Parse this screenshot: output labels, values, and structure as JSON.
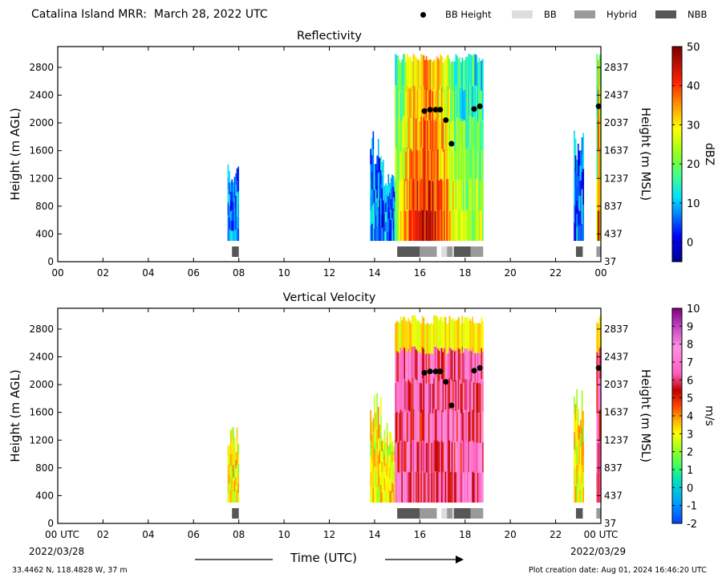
{
  "title": "Catalina Island MRR:  March 28, 2022 UTC",
  "legend": [
    {
      "label": "BB Height",
      "kind": "dot",
      "color": "#000000"
    },
    {
      "label": "BB",
      "kind": "box",
      "color": "#dddddd"
    },
    {
      "label": "Hybrid",
      "kind": "box",
      "color": "#9a9a9a"
    },
    {
      "label": "NBB",
      "kind": "box",
      "color": "#575757"
    }
  ],
  "xlabel": "Time (UTC)",
  "start_date": "2022/03/28",
  "end_date": "2022/03/29",
  "location": "33.4462 N, 118.4828 W, 37 m",
  "creation_date": "Plot creation date: Aug 01, 2024 16:46:20 UTC",
  "chart_data": [
    {
      "type": "heatmap",
      "title": "Reflectivity",
      "ylabel": "Height (m AGL)",
      "ylabel_right": "Height (m MSL)",
      "xlim": [
        0,
        24
      ],
      "ylim": [
        0,
        3100
      ],
      "x_ticks": [
        "00",
        "02",
        "04",
        "06",
        "08",
        "10",
        "12",
        "14",
        "16",
        "18",
        "20",
        "22",
        "00"
      ],
      "y_ticks_left": [
        0,
        400,
        800,
        1200,
        1600,
        2000,
        2400,
        2800
      ],
      "y_ticks_right": [
        37,
        437,
        837,
        1237,
        1637,
        2037,
        2437,
        2837
      ],
      "colorbar": {
        "label": "dBZ",
        "min": -5,
        "max": 50,
        "ticks": [
          0,
          10,
          20,
          30,
          40,
          50
        ]
      },
      "echo_periods": [
        {
          "start": 7.5,
          "end": 8.0,
          "top": 1400,
          "bottom": 300
        },
        {
          "start": 13.8,
          "end": 14.3,
          "top": 1900,
          "bottom": 300
        },
        {
          "start": 14.3,
          "end": 14.9,
          "top": 1500,
          "bottom": 300
        },
        {
          "start": 14.9,
          "end": 18.8,
          "top": 3000,
          "bottom": 300
        },
        {
          "start": 22.8,
          "end": 23.2,
          "top": 2000,
          "bottom": 300
        },
        {
          "start": 23.8,
          "end": 24.0,
          "top": 3000,
          "bottom": 300
        }
      ],
      "bb_height": [
        {
          "x": 16.2,
          "y": 2170
        },
        {
          "x": 16.45,
          "y": 2190
        },
        {
          "x": 16.7,
          "y": 2190
        },
        {
          "x": 16.9,
          "y": 2190
        },
        {
          "x": 17.15,
          "y": 2040
        },
        {
          "x": 17.4,
          "y": 1700
        },
        {
          "x": 18.4,
          "y": 2200
        },
        {
          "x": 18.65,
          "y": 2240
        },
        {
          "x": 23.9,
          "y": 2240
        }
      ],
      "bb_type": [
        {
          "start": 7.7,
          "end": 8.0,
          "class": "NBB"
        },
        {
          "start": 15.0,
          "end": 16.0,
          "class": "NBB"
        },
        {
          "start": 16.0,
          "end": 16.75,
          "class": "Hybrid"
        },
        {
          "start": 16.95,
          "end": 17.2,
          "class": "BB"
        },
        {
          "start": 17.2,
          "end": 17.45,
          "class": "Hybrid"
        },
        {
          "start": 17.5,
          "end": 18.25,
          "class": "NBB"
        },
        {
          "start": 18.25,
          "end": 18.8,
          "class": "Hybrid"
        },
        {
          "start": 22.9,
          "end": 23.2,
          "class": "NBB"
        },
        {
          "start": 23.8,
          "end": 24.0,
          "class": "Hybrid"
        }
      ]
    },
    {
      "type": "heatmap",
      "title": "Vertical Velocity",
      "ylabel": "Height (m AGL)",
      "ylabel_right": "Height (m MSL)",
      "xlim": [
        0,
        24
      ],
      "ylim": [
        0,
        3100
      ],
      "x_ticks": [
        "00 UTC",
        "02",
        "04",
        "06",
        "08",
        "10",
        "12",
        "14",
        "16",
        "18",
        "20",
        "22",
        "00 UTC"
      ],
      "y_ticks_left": [
        0,
        400,
        800,
        1200,
        1600,
        2000,
        2400,
        2800
      ],
      "y_ticks_right": [
        37,
        437,
        837,
        1237,
        1637,
        2037,
        2437,
        2837
      ],
      "colorbar": {
        "label": "m/s",
        "min": -2,
        "max": 10,
        "ticks": [
          -2,
          -1,
          0,
          1,
          2,
          3,
          4,
          5,
          6,
          7,
          8,
          9,
          10
        ]
      },
      "echo_periods": [
        {
          "start": 7.5,
          "end": 8.0,
          "top": 1400,
          "bottom": 300
        },
        {
          "start": 13.8,
          "end": 14.3,
          "top": 1900,
          "bottom": 300
        },
        {
          "start": 14.3,
          "end": 14.9,
          "top": 1500,
          "bottom": 300
        },
        {
          "start": 14.9,
          "end": 18.8,
          "top": 3000,
          "bottom": 300
        },
        {
          "start": 22.8,
          "end": 23.2,
          "top": 2000,
          "bottom": 300
        },
        {
          "start": 23.8,
          "end": 24.0,
          "top": 3000,
          "bottom": 300
        }
      ],
      "bb_height": [
        {
          "x": 16.2,
          "y": 2170
        },
        {
          "x": 16.45,
          "y": 2190
        },
        {
          "x": 16.7,
          "y": 2190
        },
        {
          "x": 16.9,
          "y": 2190
        },
        {
          "x": 17.15,
          "y": 2040
        },
        {
          "x": 17.4,
          "y": 1700
        },
        {
          "x": 18.4,
          "y": 2200
        },
        {
          "x": 18.65,
          "y": 2240
        },
        {
          "x": 23.9,
          "y": 2240
        }
      ],
      "bb_type": [
        {
          "start": 7.7,
          "end": 8.0,
          "class": "NBB"
        },
        {
          "start": 15.0,
          "end": 16.0,
          "class": "NBB"
        },
        {
          "start": 16.0,
          "end": 16.75,
          "class": "Hybrid"
        },
        {
          "start": 16.95,
          "end": 17.2,
          "class": "BB"
        },
        {
          "start": 17.2,
          "end": 17.45,
          "class": "Hybrid"
        },
        {
          "start": 17.5,
          "end": 18.25,
          "class": "NBB"
        },
        {
          "start": 18.25,
          "end": 18.8,
          "class": "Hybrid"
        },
        {
          "start": 22.9,
          "end": 23.2,
          "class": "NBB"
        },
        {
          "start": 23.8,
          "end": 24.0,
          "class": "Hybrid"
        }
      ]
    }
  ]
}
